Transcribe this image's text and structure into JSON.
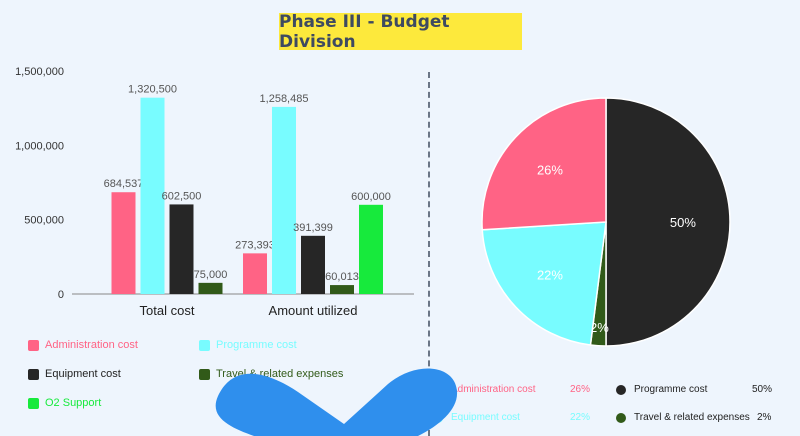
{
  "page": {
    "title": "Phase III - Budget Division"
  },
  "colors": {
    "administration": "#ff6385",
    "programme": "#78fcff",
    "equipment": "#262626",
    "travel": "#315a19",
    "o2": "#17ea3c",
    "background": "#eef5fd",
    "title_bg": "#fde93c",
    "decoration": "#2f8fed"
  },
  "chart_data": [
    {
      "type": "bar",
      "categories": [
        "Total cost",
        "Amount utilized"
      ],
      "ylim": [
        0,
        1500000
      ],
      "yticks": [
        "0",
        "500,000",
        "1,000,000",
        "1,500,000"
      ],
      "ytick_values": [
        0,
        500000,
        1000000,
        1500000
      ],
      "series": [
        {
          "name": "Administration cost",
          "values": [
            684537,
            273393
          ],
          "labels": [
            "684,537",
            "273,393"
          ],
          "color_key": "administration"
        },
        {
          "name": "Programme cost",
          "values": [
            1320500,
            1258485
          ],
          "labels": [
            "1,320,500",
            "1,258,485"
          ],
          "color_key": "programme"
        },
        {
          "name": "Equipment cost",
          "values": [
            602500,
            391399
          ],
          "labels": [
            "602,500",
            "391,399"
          ],
          "color_key": "equipment"
        },
        {
          "name": "Travel & related expenses",
          "values": [
            75000,
            60013
          ],
          "labels": [
            "75,000",
            "60,013"
          ],
          "color_key": "travel"
        },
        {
          "name": "O2 Support",
          "values": [
            null,
            600000
          ],
          "labels": [
            "",
            "600,000"
          ],
          "color_key": "o2"
        }
      ],
      "legend": [
        {
          "label": "Administration cost",
          "color_key": "administration"
        },
        {
          "label": "Programme cost",
          "color_key": "programme"
        },
        {
          "label": "Equipment cost",
          "color_key": "equipment"
        },
        {
          "label": "Travel & related expenses",
          "color_key": "travel"
        },
        {
          "label": "O2 Support",
          "color_key": "o2"
        }
      ],
      "grid": false
    },
    {
      "type": "pie",
      "slices": [
        {
          "name": "Programme cost",
          "value": 50,
          "label": "50%",
          "color_key": "equipment"
        },
        {
          "name": "Travel & related expenses",
          "value": 2,
          "label": "2%",
          "color_key": "travel"
        },
        {
          "name": "Equipment cost",
          "value": 22,
          "label": "22%",
          "color_key": "programme"
        },
        {
          "name": "Administration cost",
          "value": 26,
          "label": "26%",
          "color_key": "administration"
        }
      ],
      "legend": [
        {
          "label": "Administration cost",
          "pct": "26%",
          "color_key": "administration"
        },
        {
          "label": "Programme cost",
          "pct": "50%",
          "color_key": "equipment"
        },
        {
          "label": "Equipment cost",
          "pct": "22%",
          "color_key": "programme"
        },
        {
          "label": "Travel & related expenses",
          "pct": "2%",
          "color_key": "travel"
        }
      ]
    }
  ]
}
